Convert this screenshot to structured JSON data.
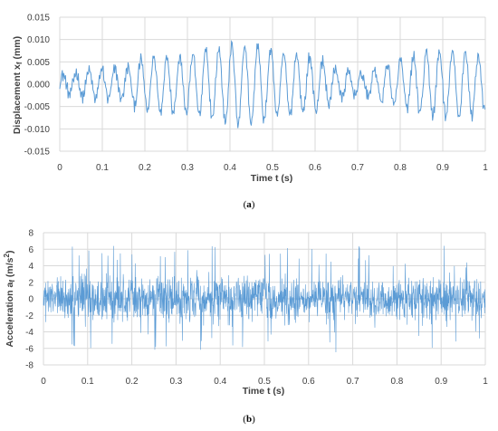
{
  "chart_data": [
    {
      "type": "line",
      "panel_label": "a",
      "xlabel": "Time t (s)",
      "ylabel_main": "Displacement x",
      "ylabel_sub": "f",
      "ylabel_unit": " (mm)",
      "xlim": [
        0,
        1
      ],
      "ylim": [
        -0.015,
        0.015
      ],
      "x_ticks": [
        "0",
        "0.1",
        "0.2",
        "0.3",
        "0.4",
        "0.5",
        "0.6",
        "0.7",
        "0.8",
        "0.9",
        "1"
      ],
      "y_ticks": [
        "0.015",
        "0.010",
        "0.005",
        "0.000",
        "-0.005",
        "-0.010",
        "-0.015"
      ],
      "grid": true,
      "color": "#5b9bd5",
      "signal": {
        "sample_step": 0.0015,
        "oscillation_period": 0.0305,
        "envelope_t": [
          0,
          0.1,
          0.15,
          0.2,
          0.3,
          0.4,
          0.45,
          0.5,
          0.55,
          0.6,
          0.65,
          0.7,
          0.8,
          0.9,
          0.95,
          1.0
        ],
        "envelope_amplitude": [
          0.002,
          0.0035,
          0.0032,
          0.006,
          0.0065,
          0.0085,
          0.009,
          0.0075,
          0.0068,
          0.006,
          0.0035,
          0.002,
          0.0055,
          0.0075,
          0.0075,
          0.006
        ]
      }
    },
    {
      "type": "line",
      "panel_label": "b",
      "xlabel": "Time t (s)",
      "ylabel_main": "Acceleration a",
      "ylabel_sub": "f",
      "ylabel_unit": " (m/s",
      "ylabel_sup": "2",
      "ylabel_close": ")",
      "xlim": [
        0,
        1
      ],
      "ylim": [
        -8,
        8
      ],
      "x_ticks": [
        "0",
        "0.1",
        "0.2",
        "0.3",
        "0.4",
        "0.5",
        "0.6",
        "0.7",
        "0.8",
        "0.9",
        "1"
      ],
      "y_ticks": [
        "8",
        "6",
        "4",
        "2",
        "0",
        "-2",
        "-4",
        "-6",
        "-8"
      ],
      "grid": true,
      "color": "#5b9bd5",
      "signal": {
        "sample_step": 0.0006,
        "envelope_t": [
          0,
          0.1,
          0.2,
          0.3,
          0.4,
          0.5,
          0.6,
          0.7,
          0.8,
          0.85,
          0.9,
          1.0
        ],
        "envelope_amplitude": [
          3.5,
          4.0,
          4.2,
          3.8,
          4.0,
          4.2,
          3.6,
          3.2,
          3.5,
          4.5,
          3.8,
          3.5
        ],
        "peak_max": 6.5
      }
    }
  ]
}
